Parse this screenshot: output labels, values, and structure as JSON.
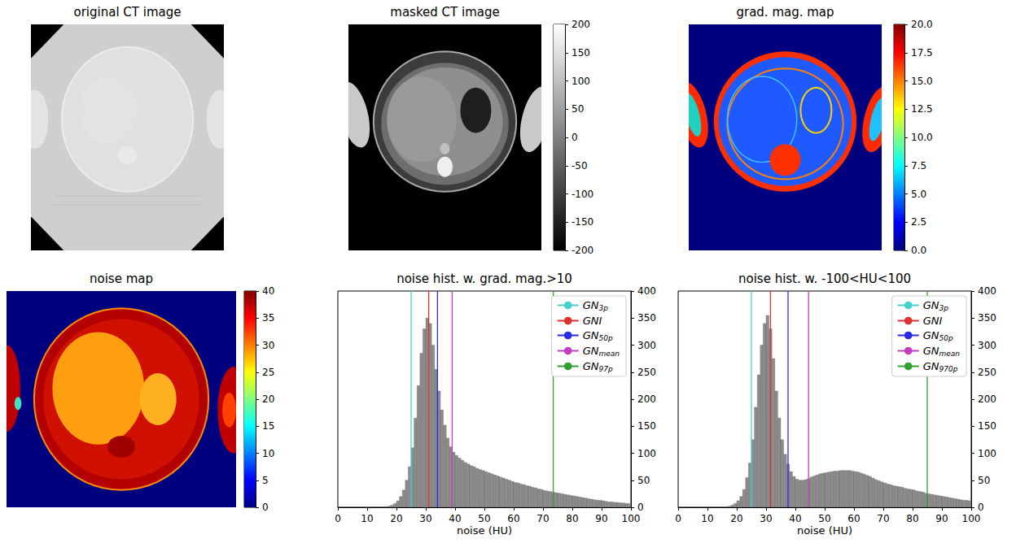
{
  "chart_data": [
    {
      "type": "image",
      "title": "original CT image"
    },
    {
      "type": "image",
      "title": "masked CT image",
      "colorbar": {
        "lim": [
          -200,
          200
        ],
        "ticks": [
          -200,
          -150,
          -100,
          -50,
          0,
          50,
          100,
          150,
          200
        ],
        "colors": [
          "#000000",
          "#ffffff"
        ]
      }
    },
    {
      "type": "image",
      "title": "grad. mag. map",
      "colorbar": {
        "lim": [
          0,
          20
        ],
        "ticks": [
          {
            "value": 0,
            "label": "0.0"
          },
          2.5,
          {
            "value": 5,
            "label": "5.0"
          },
          7.5,
          {
            "value": 10,
            "label": "10.0"
          },
          12.5,
          {
            "value": 15,
            "label": "15.0"
          },
          17.5,
          {
            "value": 20,
            "label": "20.0"
          }
        ],
        "colors": [
          "#00007f",
          "#0000ff",
          "#007fff",
          "#00ffff",
          "#7fff7f",
          "#ffff00",
          "#ff7f00",
          "#ff0000",
          "#7f0000"
        ]
      }
    },
    {
      "type": "image",
      "title": "noise map",
      "colorbar": {
        "lim": [
          0,
          40
        ],
        "ticks": [
          0,
          5,
          10,
          15,
          20,
          25,
          30,
          35,
          40
        ],
        "colors": [
          "#00007f",
          "#0000ff",
          "#007fff",
          "#00ffff",
          "#7fff7f",
          "#ffff00",
          "#ff7f00",
          "#ff0000",
          "#7f0000"
        ]
      }
    },
    {
      "type": "histogram",
      "title": "noise hist. w. grad. mag.>10",
      "xlabel": "noise (HU)",
      "color": "#8c8c8c",
      "bins": [
        0,
        1,
        2,
        3,
        4,
        5,
        6,
        7,
        8,
        9,
        10,
        11,
        12,
        13,
        14,
        15,
        16,
        17,
        18,
        19,
        20,
        21,
        22,
        23,
        24,
        25,
        26,
        27,
        28,
        29,
        30,
        31,
        32,
        33,
        34,
        35,
        36,
        37,
        38,
        39,
        40,
        41,
        42,
        43,
        44,
        45,
        46,
        47,
        48,
        49,
        50,
        51,
        52,
        53,
        54,
        55,
        56,
        57,
        58,
        59,
        60,
        61,
        62,
        63,
        64,
        65,
        66,
        67,
        68,
        69,
        70,
        71,
        72,
        73,
        74,
        75,
        76,
        77,
        78,
        79,
        80,
        81,
        82,
        83,
        84,
        85,
        86,
        87,
        88,
        89,
        90,
        91,
        92,
        93,
        94,
        95,
        96,
        97,
        98,
        99,
        100
      ],
      "counts": [
        0,
        0,
        0,
        0,
        0,
        0,
        0,
        0,
        0,
        0,
        0,
        0,
        0,
        0,
        0,
        0,
        1,
        2,
        4,
        7,
        12,
        20,
        32,
        50,
        75,
        110,
        165,
        225,
        285,
        330,
        350,
        340,
        300,
        255,
        215,
        180,
        152,
        128,
        112,
        102,
        96,
        91,
        87,
        83,
        80,
        77,
        75,
        72,
        70,
        68,
        66,
        64,
        62,
        60,
        58,
        56,
        54,
        52,
        50,
        48,
        46,
        45,
        43,
        42,
        40,
        39,
        37,
        36,
        34,
        33,
        31,
        30,
        29,
        28,
        27,
        26,
        25,
        24,
        23,
        22,
        21,
        20,
        19,
        18,
        17,
        16,
        15,
        14,
        13,
        13,
        12,
        11,
        10,
        10,
        9,
        9,
        8,
        8,
        7,
        7
      ],
      "xlim": [
        0,
        100
      ],
      "xticks": [
        0,
        10,
        20,
        30,
        40,
        50,
        60,
        70,
        80,
        90,
        100
      ],
      "ylim": [
        0,
        400
      ],
      "yticks": [
        0,
        50,
        100,
        150,
        200,
        250,
        300,
        350,
        400
      ],
      "legend": "upper right",
      "lines": [
        {
          "name": "GN",
          "sub": "3p",
          "color": "#48d1cc",
          "x": 25
        },
        {
          "name": "GNI",
          "color": "#e03030",
          "x": 31
        },
        {
          "name": "GN",
          "sub": "50p",
          "color": "#2a2ae0",
          "x": 34
        },
        {
          "name": "GN",
          "sub": "mean",
          "color": "#c040c0",
          "x": 39
        },
        {
          "name": "GN",
          "sub": "97p",
          "color": "#30a030",
          "x": 73.5
        }
      ]
    },
    {
      "type": "histogram",
      "title": "noise hist. w. -100<HU<100",
      "xlabel": "noise (HU)",
      "color": "#8c8c8c",
      "bins": [
        0,
        1,
        2,
        3,
        4,
        5,
        6,
        7,
        8,
        9,
        10,
        11,
        12,
        13,
        14,
        15,
        16,
        17,
        18,
        19,
        20,
        21,
        22,
        23,
        24,
        25,
        26,
        27,
        28,
        29,
        30,
        31,
        32,
        33,
        34,
        35,
        36,
        37,
        38,
        39,
        40,
        41,
        42,
        43,
        44,
        45,
        46,
        47,
        48,
        49,
        50,
        51,
        52,
        53,
        54,
        55,
        56,
        57,
        58,
        59,
        60,
        61,
        62,
        63,
        64,
        65,
        66,
        67,
        68,
        69,
        70,
        71,
        72,
        73,
        74,
        75,
        76,
        77,
        78,
        79,
        80,
        81,
        82,
        83,
        84,
        85,
        86,
        87,
        88,
        89,
        90,
        91,
        92,
        93,
        94,
        95,
        96,
        97,
        98,
        99,
        100
      ],
      "counts": [
        0,
        0,
        0,
        0,
        0,
        0,
        0,
        0,
        0,
        0,
        0,
        0,
        0,
        0,
        0,
        0,
        1,
        2,
        4,
        7,
        12,
        20,
        33,
        55,
        82,
        125,
        185,
        245,
        300,
        340,
        355,
        330,
        275,
        215,
        165,
        125,
        98,
        80,
        66,
        57,
        52,
        50,
        50,
        51,
        53,
        56,
        58,
        60,
        62,
        63,
        64,
        65,
        66,
        67,
        67,
        68,
        68,
        68,
        68,
        67,
        66,
        65,
        63,
        61,
        59,
        57,
        54,
        51,
        49,
        47,
        45,
        43,
        42,
        40,
        39,
        38,
        37,
        35,
        34,
        33,
        32,
        30,
        29,
        28,
        26,
        25,
        24,
        23,
        22,
        21,
        20,
        19,
        18,
        17,
        16,
        15,
        14,
        13,
        13,
        12
      ],
      "xlim": [
        0,
        100
      ],
      "xticks": [
        0,
        10,
        20,
        30,
        40,
        50,
        60,
        70,
        80,
        90,
        100
      ],
      "ylim": [
        0,
        400
      ],
      "yticks": [
        0,
        50,
        100,
        150,
        200,
        250,
        300,
        350,
        400
      ],
      "legend": "upper right",
      "lines": [
        {
          "name": "GN",
          "sub": "3p",
          "color": "#48d1cc",
          "x": 25
        },
        {
          "name": "GNI",
          "color": "#e03030",
          "x": 31.5
        },
        {
          "name": "GN",
          "sub": "50p",
          "color": "#2a2ae0",
          "x": 37.5
        },
        {
          "name": "GN",
          "sub": "mean",
          "color": "#c040c0",
          "x": 44.5
        },
        {
          "name": "GN",
          "sub": "970p",
          "color": "#30a030",
          "x": 85
        }
      ]
    }
  ]
}
